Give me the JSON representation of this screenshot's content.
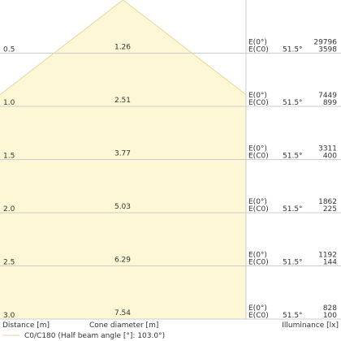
{
  "chart_data": {
    "type": "cone diagram",
    "fill_color": "#fdf7d6",
    "line_color": "#e8d69a",
    "footer": {
      "distance_label": "Distance [m]",
      "cone_label": "Cone diameter [m]",
      "illuminance_label": "Illuminance [lx]",
      "legend": "C0/C180 (Half beam angle [°]: 103.0°)"
    },
    "rows": [
      {
        "distance": "0.5",
        "diameter": "1.26",
        "label_e0": "E(0°)",
        "label_ec0": "E(C0)",
        "angle": "51.5°",
        "e0": "29796",
        "ec0": "3598"
      },
      {
        "distance": "1.0",
        "diameter": "2.51",
        "label_e0": "E(0°)",
        "label_ec0": "E(C0)",
        "angle": "51.5°",
        "e0": "7449",
        "ec0": "899"
      },
      {
        "distance": "1.5",
        "diameter": "3.77",
        "label_e0": "E(0°)",
        "label_ec0": "E(C0)",
        "angle": "51.5°",
        "e0": "3311",
        "ec0": "400"
      },
      {
        "distance": "2.0",
        "diameter": "5.03",
        "label_e0": "E(0°)",
        "label_ec0": "E(C0)",
        "angle": "51.5°",
        "e0": "1862",
        "ec0": "225"
      },
      {
        "distance": "2.5",
        "diameter": "6.29",
        "label_e0": "E(0°)",
        "label_ec0": "E(C0)",
        "angle": "51.5°",
        "e0": "1192",
        "ec0": "144"
      },
      {
        "distance": "3.0",
        "diameter": "7.54",
        "label_e0": "E(0°)",
        "label_ec0": "E(C0)",
        "angle": "51.5°",
        "e0": "828",
        "ec0": "100"
      }
    ]
  }
}
